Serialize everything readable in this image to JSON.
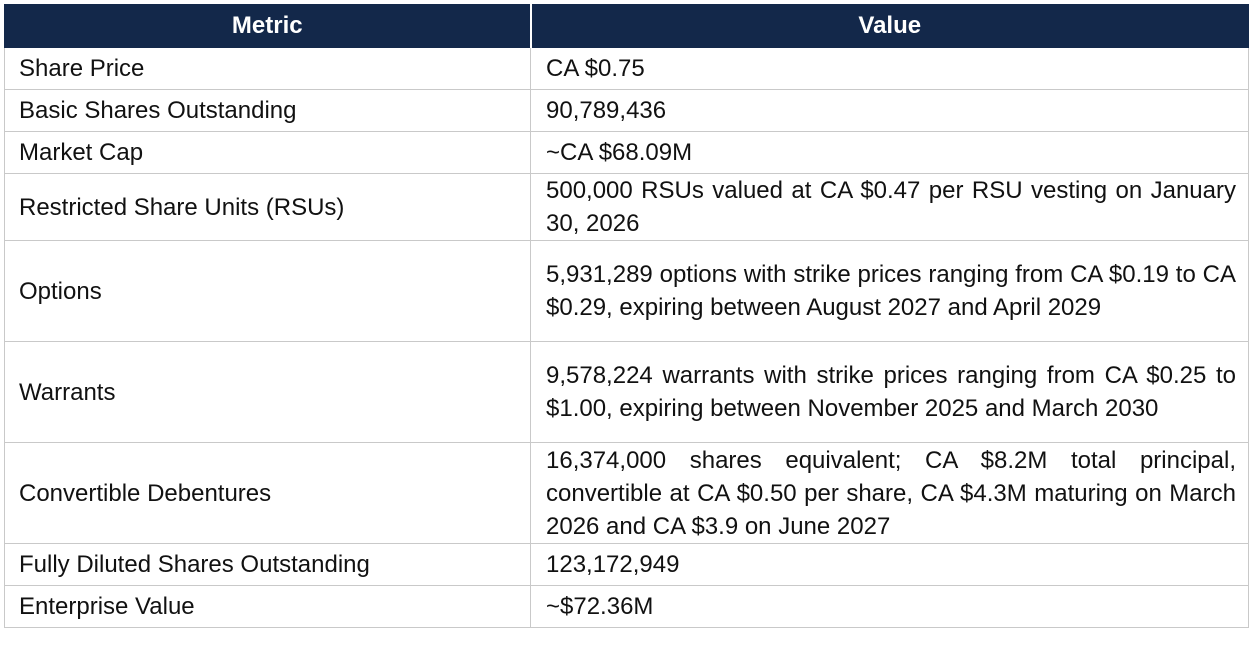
{
  "table": {
    "headers": {
      "metric": "Metric",
      "value": "Value"
    },
    "rows": [
      {
        "metric": "Share Price",
        "value": "CA $0.75"
      },
      {
        "metric": "Basic Shares Outstanding",
        "value": "90,789,436"
      },
      {
        "metric": "Market Cap",
        "value": "~CA $68.09M"
      },
      {
        "metric": "Restricted Share Units (RSUs)",
        "value": "500,000 RSUs valued at CA $0.47 per RSU vesting on January 30, 2026"
      },
      {
        "metric": "Options",
        "value": "5,931,289 options with strike prices ranging from CA $0.19 to CA $0.29, expiring between August 2027 and April 2029"
      },
      {
        "metric": "Warrants",
        "value": "9,578,224 warrants with strike prices ranging from CA $0.25 to $1.00, expiring between November 2025 and March 2030"
      },
      {
        "metric": "Convertible Debentures",
        "value": "16,374,000 shares equivalent; CA $8.2M total principal, convertible at CA $0.50 per share, CA $4.3M maturing on March 2026 and CA $3.9 on June 2027"
      },
      {
        "metric": "Fully Diluted Shares Outstanding",
        "value": "123,172,949"
      },
      {
        "metric": "Enterprise Value",
        "value": "~$72.36M"
      }
    ]
  },
  "colors": {
    "header_background": "#13284a",
    "header_text": "#ffffff",
    "border": "#c9c9c9"
  }
}
